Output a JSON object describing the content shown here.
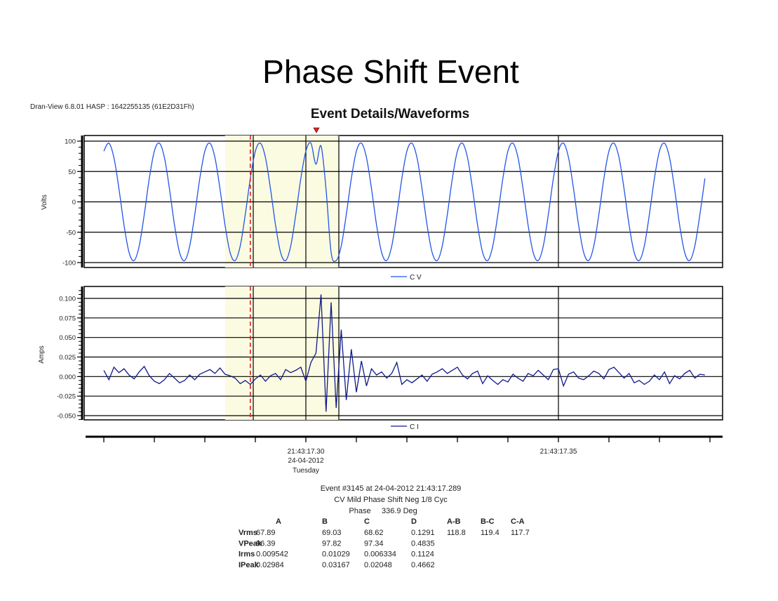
{
  "slide_title": "Phase Shift Event",
  "software_info": "Dran-View 6.8.01 HASP : 1642255135 (61E2D31Fh)",
  "colors": {
    "voltage": "#2255e8",
    "current": "#101a8c",
    "event_marker": "#e02020",
    "highlight": "#fbfbe2"
  },
  "chart_data": [
    {
      "type": "line",
      "title": "Event Details/Waveforms",
      "ylabel": "Volts",
      "ylim": [
        -100,
        100
      ],
      "yticks": [
        "100",
        "50",
        "0",
        "-50",
        "-100"
      ],
      "grid": true,
      "legend": "bottom",
      "x_start": "21:43:17.260",
      "sample_interval_s": 0.001,
      "series": [
        {
          "name": "C V",
          "values": [
            83.5,
            96.6,
            72.8,
            21.2,
            -38.5,
            -83.5,
            -96.6,
            -72.8,
            -21.2,
            38.5,
            83.5,
            96.6,
            72.8,
            21.2,
            -38.5,
            -83.5,
            -96.6,
            -72.8,
            -21.2,
            38.5,
            83.5,
            96.6,
            72.8,
            21.2,
            -38.5,
            -83.5,
            -96.6,
            -72.8,
            -21.2,
            38.5,
            83.5,
            96.6,
            72.8,
            21.2,
            -38.5,
            -83.5,
            -96.6,
            -72.8,
            -21.2,
            38.5,
            83.5,
            96.6,
            62,
            92,
            20,
            -83.5,
            -96.6,
            -72.8,
            -21.2,
            38.5,
            83.5,
            96.6,
            72.8,
            21.2,
            -38.5,
            -83.5,
            -96.6,
            -72.8,
            -21.2,
            38.5,
            83.5,
            96.6,
            72.8,
            21.2,
            -38.5,
            -83.5,
            -96.6,
            -72.8,
            -21.2,
            38.5,
            83.5,
            96.6,
            72.8,
            21.2,
            -38.5,
            -83.5,
            -96.6,
            -72.8,
            -21.2,
            38.5,
            83.5,
            96.6,
            72.8,
            21.2,
            -38.5,
            -83.5,
            -96.6,
            -72.8,
            -21.2,
            38.5,
            83.5,
            96.6,
            72.8,
            21.2,
            -38.5,
            -83.5,
            -96.6,
            -72.8,
            -21.2,
            38.5,
            83.5,
            96.6,
            72.8,
            21.2,
            -38.5,
            -83.5,
            -96.6,
            -72.8,
            -21.2,
            38.5,
            83.5,
            96.6,
            72.8,
            21.2,
            -38.5,
            -83.5,
            -96.6,
            -72.8,
            -21.2,
            38.5
          ]
        }
      ]
    },
    {
      "type": "line",
      "ylabel": "Amps",
      "ylim": [
        -0.05,
        0.1
      ],
      "yticks": [
        "0.100",
        "0.075",
        "0.050",
        "0.025",
        "0.000",
        "-0.025",
        "-0.050"
      ],
      "grid": true,
      "legend": "bottom",
      "x_start": "21:43:17.260",
      "sample_interval_s": 0.001,
      "series": [
        {
          "name": "C I",
          "values": [
            0.008,
            -0.004,
            0.012,
            0.005,
            0.01,
            0.002,
            -0.003,
            0.006,
            0.013,
            0.001,
            -0.006,
            -0.009,
            -0.004,
            0.004,
            -0.002,
            -0.008,
            -0.005,
            0.002,
            -0.004,
            0.003,
            0.006,
            0.009,
            0.004,
            0.011,
            0.003,
            0.001,
            -0.002,
            -0.009,
            -0.005,
            -0.01,
            -0.003,
            0.002,
            -0.006,
            0.001,
            0.004,
            -0.004,
            0.009,
            0.005,
            0.008,
            0.012,
            -0.006,
            0.018,
            0.03,
            0.105,
            -0.045,
            0.095,
            -0.04,
            0.06,
            -0.03,
            0.035,
            -0.02,
            0.02,
            -0.012,
            0.01,
            0.002,
            0.006,
            -0.002,
            0.004,
            0.018,
            -0.01,
            -0.004,
            -0.008,
            -0.003,
            0.002,
            -0.006,
            0.003,
            0.006,
            0.01,
            0.004,
            0.008,
            0.012,
            0.002,
            -0.003,
            0.004,
            0.007,
            -0.009,
            0.001,
            -0.005,
            -0.01,
            -0.004,
            -0.007,
            0.003,
            -0.002,
            -0.006,
            0.004,
            0.001,
            0.008,
            0.002,
            -0.004,
            0.009,
            0.01,
            -0.012,
            0.003,
            0.006,
            -0.002,
            -0.004,
            0.001,
            0.007,
            0.004,
            -0.003,
            0.009,
            0.012,
            0.005,
            -0.002,
            0.004,
            -0.008,
            -0.005,
            -0.01,
            -0.006,
            0.002,
            -0.004,
            0.006,
            -0.009,
            0.001,
            -0.003,
            0.004,
            0.008,
            -0.002,
            0.003,
            0.002
          ]
        }
      ]
    }
  ],
  "time_axis": {
    "labels": [
      {
        "time": "21:43:17.30",
        "date": "24-04-2012",
        "day": "Tuesday"
      },
      {
        "time": "21:43:17.35"
      }
    ],
    "highlight_range": [
      "21:43:17.284",
      "21:43:17.3067"
    ],
    "event_time": "21:43:17.289"
  },
  "event": {
    "line1": "Event #3145 at 24-04-2012 21:43:17.289",
    "line2": "CV Mild Phase Shift Neg 1/8 Cyc",
    "phase_label": "Phase",
    "phase_value": "336.9 Deg"
  },
  "table": {
    "columns": [
      "A",
      "B",
      "C",
      "D",
      "A-B",
      "B-C",
      "C-A"
    ],
    "rows": [
      {
        "label": "Vrms",
        "values": [
          "67.89",
          "69.03",
          "68.62",
          "0.1291",
          "118.8",
          "119.4",
          "117.7"
        ]
      },
      {
        "label": "VPeak",
        "values": [
          "96.39",
          "97.82",
          "97.34",
          "0.4835"
        ]
      },
      {
        "label": "Irms",
        "values": [
          "0.009542",
          "0.01029",
          "0.006334",
          "0.1124"
        ]
      },
      {
        "label": "IPeak",
        "values": [
          "0.02984",
          "0.03167",
          "0.02048",
          "0.4662"
        ]
      }
    ]
  }
}
